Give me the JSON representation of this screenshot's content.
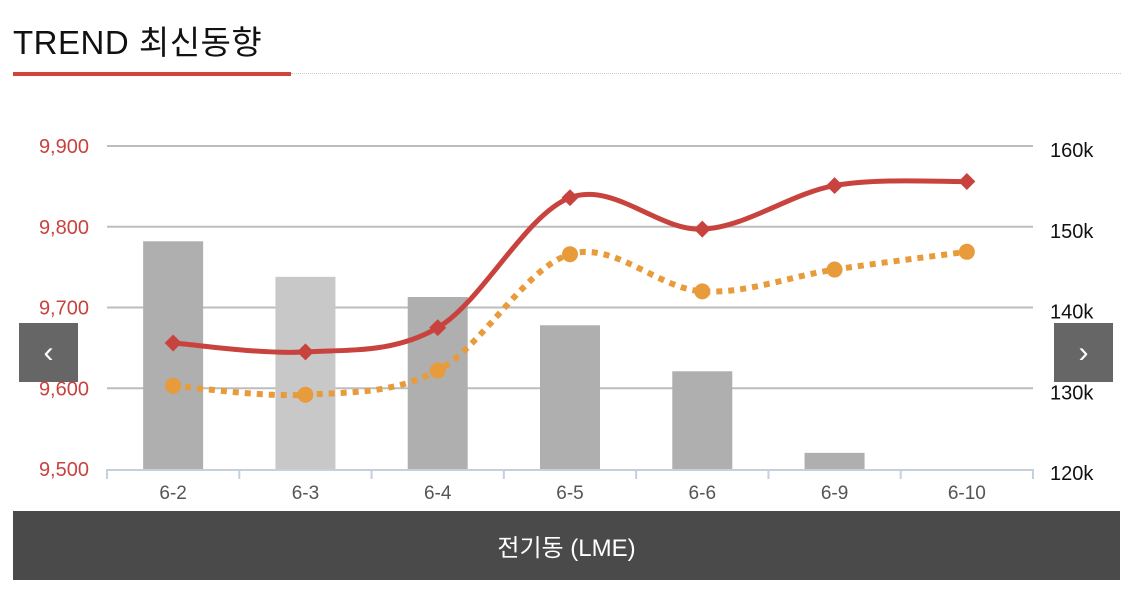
{
  "header": {
    "title": "TREND 최신동향"
  },
  "footer": {
    "label": "전기동 (LME)"
  },
  "nav": {
    "prev_icon": "chevron-left-icon",
    "next_icon": "chevron-right-icon",
    "prev": "‹",
    "next": "›"
  },
  "chart_data": {
    "type": "bar+line",
    "categories": [
      "6-2",
      "6-3",
      "6-4",
      "6-5",
      "6-6",
      "6-9",
      "6-10"
    ],
    "left_axis": {
      "ticks": [
        "9,500",
        "9,600",
        "9,700",
        "9,800",
        "9,900"
      ],
      "ylim": [
        9500,
        9900
      ],
      "color": "#c9433e"
    },
    "right_axis": {
      "ticks": [
        "120k",
        "130k",
        "140k",
        "150k",
        "160k"
      ],
      "ylim": [
        120000,
        160000
      ]
    },
    "grid": true,
    "series": [
      {
        "type": "bar",
        "axis": "right",
        "values": [
          148200,
          143800,
          141300,
          137800,
          132100,
          122000,
          null
        ],
        "color": "#afafaf",
        "highlight_color": "#c8c8c8",
        "highlight_index": 1
      },
      {
        "type": "line",
        "axis": "left",
        "style": "solid",
        "marker": "diamond",
        "values": [
          9656,
          9645,
          9675,
          9836,
          9797,
          9851,
          9856
        ],
        "color": "#c9433e"
      },
      {
        "type": "line",
        "axis": "left",
        "style": "dotted",
        "marker": "circle",
        "values": [
          9603,
          9592,
          9622,
          9766,
          9720,
          9747,
          9769
        ],
        "color": "#e89b3a"
      }
    ]
  }
}
